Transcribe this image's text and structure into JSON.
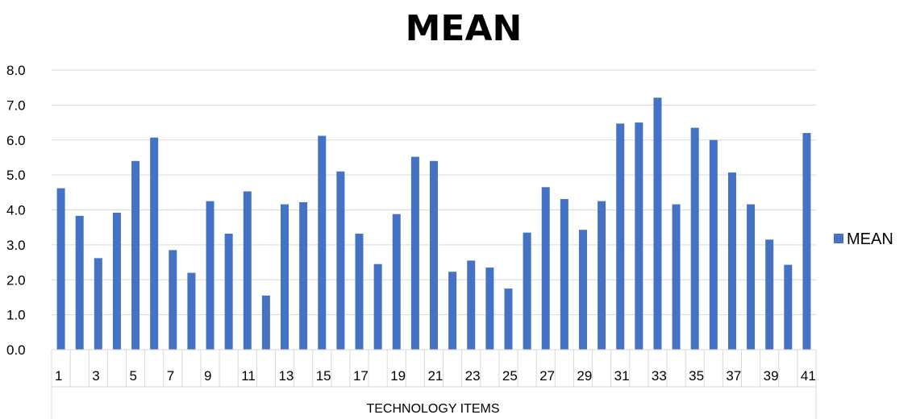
{
  "chart_data": {
    "type": "bar",
    "title": "MEAN",
    "xlabel": "TECHNOLOGY ITEMS",
    "ylabel": "",
    "ylim": [
      0,
      8
    ],
    "yticks": [
      "0.0",
      "1.0",
      "2.0",
      "3.0",
      "4.0",
      "5.0",
      "6.0",
      "7.0",
      "8.0"
    ],
    "grid": true,
    "legend_position": "right",
    "categories": [
      "1",
      "2",
      "3",
      "4",
      "5",
      "6",
      "7",
      "8",
      "9",
      "10",
      "11",
      "12",
      "13",
      "14",
      "15",
      "16",
      "17",
      "18",
      "19",
      "20",
      "21",
      "22",
      "23",
      "24",
      "25",
      "26",
      "27",
      "28",
      "29",
      "30",
      "31",
      "32",
      "33",
      "34",
      "35",
      "36",
      "37",
      "38",
      "39",
      "40",
      "41"
    ],
    "tick_labels": [
      "1",
      "",
      "3",
      "",
      "5",
      "",
      "7",
      "",
      "9",
      "",
      "11",
      "",
      "13",
      "",
      "15",
      "",
      "17",
      "",
      "19",
      "",
      "21",
      "",
      "23",
      "",
      "25",
      "",
      "27",
      "",
      "29",
      "",
      "31",
      "",
      "33",
      "",
      "35",
      "",
      "37",
      "",
      "39",
      "",
      "41"
    ],
    "series": [
      {
        "name": "MEAN",
        "color": "#4472C4",
        "values": [
          4.62,
          3.83,
          2.62,
          3.92,
          5.4,
          6.07,
          2.85,
          2.2,
          4.25,
          3.32,
          4.53,
          1.55,
          4.16,
          4.22,
          6.12,
          5.1,
          3.32,
          2.45,
          3.88,
          5.52,
          5.4,
          2.23,
          2.55,
          2.35,
          1.75,
          3.35,
          4.65,
          4.31,
          3.43,
          4.25,
          6.47,
          6.5,
          7.21,
          4.16,
          6.35,
          6.0,
          5.07,
          4.16,
          3.15,
          2.43,
          6.2
        ]
      }
    ]
  }
}
